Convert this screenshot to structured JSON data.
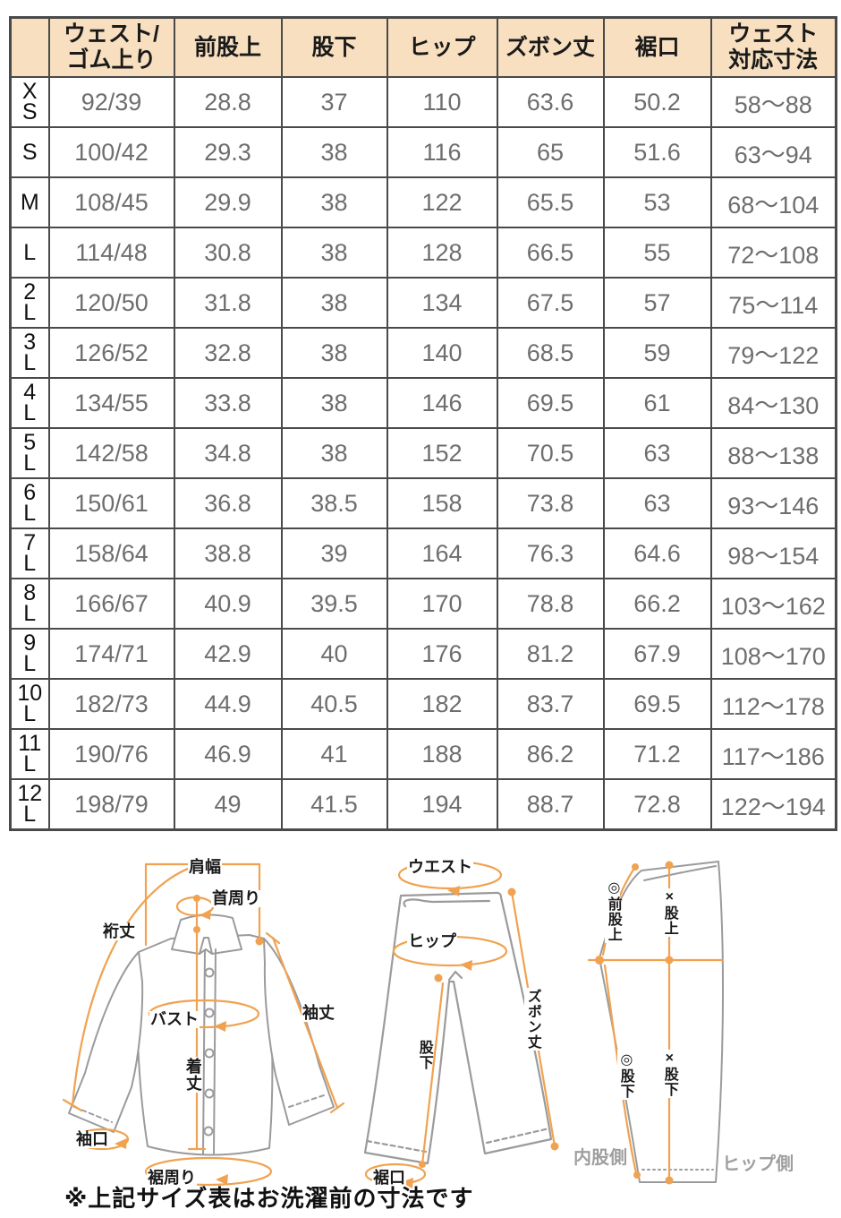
{
  "table": {
    "headers": [
      "",
      "ウェスト/\nゴム上り",
      "前股上",
      "股下",
      "ヒップ",
      "ズボン丈",
      "裾口",
      "ウェスト\n対応寸法"
    ],
    "rows": [
      {
        "size": "X\nS",
        "cells": [
          "92/39",
          "28.8",
          "37",
          "110",
          "63.6",
          "50.2",
          "58〜88"
        ]
      },
      {
        "size": "S",
        "cells": [
          "100/42",
          "29.3",
          "38",
          "116",
          "65",
          "51.6",
          "63〜94"
        ]
      },
      {
        "size": "M",
        "cells": [
          "108/45",
          "29.9",
          "38",
          "122",
          "65.5",
          "53",
          "68〜104"
        ]
      },
      {
        "size": "L",
        "cells": [
          "114/48",
          "30.8",
          "38",
          "128",
          "66.5",
          "55",
          "72〜108"
        ]
      },
      {
        "size": "2\nL",
        "cells": [
          "120/50",
          "31.8",
          "38",
          "134",
          "67.5",
          "57",
          "75〜114"
        ]
      },
      {
        "size": "3\nL",
        "cells": [
          "126/52",
          "32.8",
          "38",
          "140",
          "68.5",
          "59",
          "79〜122"
        ]
      },
      {
        "size": "4\nL",
        "cells": [
          "134/55",
          "33.8",
          "38",
          "146",
          "69.5",
          "61",
          "84〜130"
        ]
      },
      {
        "size": "5\nL",
        "cells": [
          "142/58",
          "34.8",
          "38",
          "152",
          "70.5",
          "63",
          "88〜138"
        ]
      },
      {
        "size": "6\nL",
        "cells": [
          "150/61",
          "36.8",
          "38.5",
          "158",
          "73.8",
          "63",
          "93〜146"
        ]
      },
      {
        "size": "7\nL",
        "cells": [
          "158/64",
          "38.8",
          "39",
          "164",
          "76.3",
          "64.6",
          "98〜154"
        ]
      },
      {
        "size": "8\nL",
        "cells": [
          "166/67",
          "40.9",
          "39.5",
          "170",
          "78.8",
          "66.2",
          "103〜162"
        ]
      },
      {
        "size": "9\nL",
        "cells": [
          "174/71",
          "42.9",
          "40",
          "176",
          "81.2",
          "67.9",
          "108〜170"
        ]
      },
      {
        "size": "10\nL",
        "cells": [
          "182/73",
          "44.9",
          "40.5",
          "182",
          "83.7",
          "69.5",
          "112〜178"
        ]
      },
      {
        "size": "11\nL",
        "cells": [
          "190/76",
          "46.9",
          "41",
          "188",
          "86.2",
          "71.2",
          "117〜186"
        ]
      },
      {
        "size": "12\nL",
        "cells": [
          "198/79",
          "49",
          "41.5",
          "194",
          "88.7",
          "72.8",
          "122〜194"
        ]
      }
    ]
  },
  "diagrams": {
    "shirt": {
      "shoulder_width": "肩幅",
      "neck_circumference": "首周り",
      "sleeve_reach": "裄丈",
      "bust": "バスト",
      "sleeve_length": "袖丈",
      "body_length": "着丈",
      "cuff_opening": "袖口",
      "hem_circumference": "裾周り"
    },
    "pants_front": {
      "waist": "ウエスト",
      "hip": "ヒップ",
      "pants_length": "ズボン丈",
      "inseam": "股下",
      "hem_opening": "裾口"
    },
    "pants_side": {
      "front_rise": "◎前股上",
      "rise": "×股上",
      "inseam_inner": "◎股下",
      "inseam_x": "×股下",
      "inner_side_note": "内股側",
      "hip_side_note": "ヒップ側"
    }
  },
  "note": "※上記サイズ表はお洗濯前の寸法です",
  "colors": {
    "header_bg": "#f7dfc0",
    "table_border": "#4a4a4a",
    "data_text": "#6e6e6e",
    "accent_orange": "#f0a250",
    "outline_gray": "#9b9b9b"
  }
}
